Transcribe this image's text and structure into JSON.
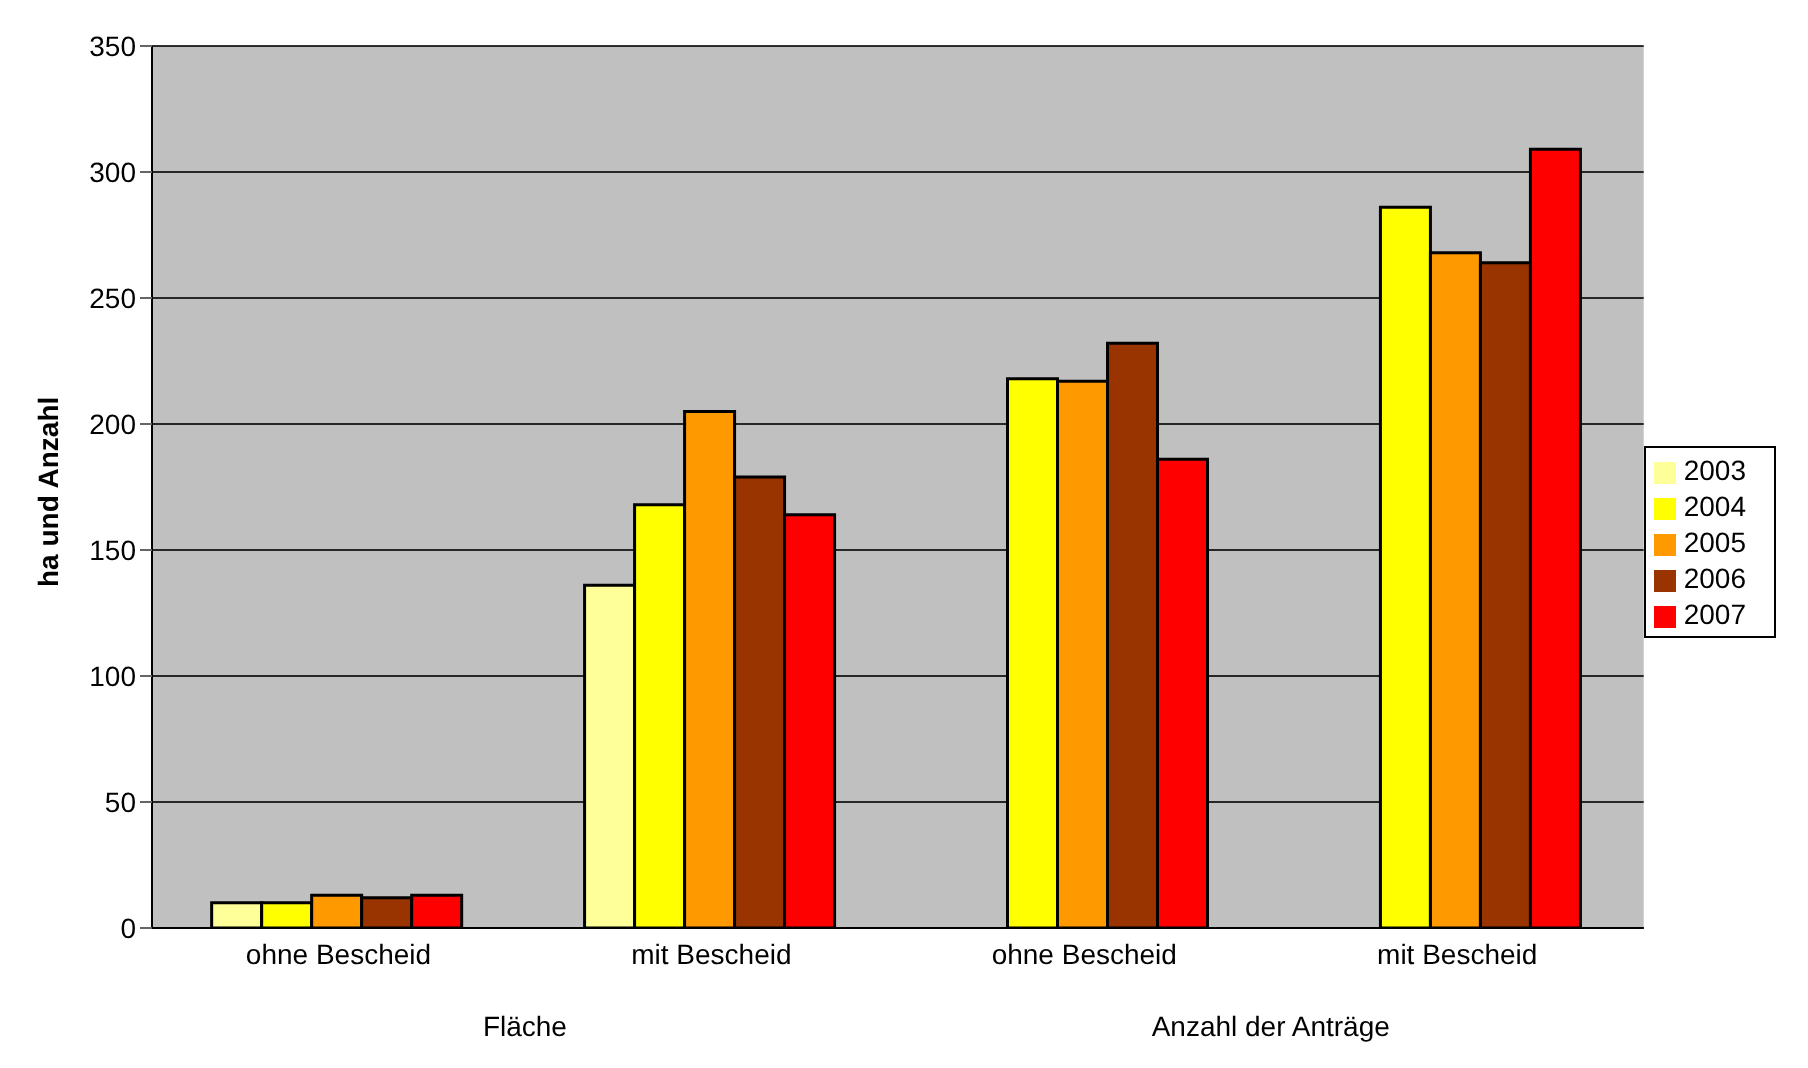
{
  "chart_data": {
    "type": "bar",
    "ylabel": "ha und Anzahl",
    "categories": [
      "ohne Bescheid",
      "mit Bescheid",
      "ohne Bescheid",
      "mit Bescheid"
    ],
    "annotations": [
      "Fläche",
      "Anzahl der Anträge"
    ],
    "series": [
      {
        "name": "2003",
        "color": "#ffff99",
        "values": [
          10,
          136,
          null,
          null
        ]
      },
      {
        "name": "2004",
        "color": "#ffff00",
        "values": [
          10,
          168,
          218,
          286
        ]
      },
      {
        "name": "2005",
        "color": "#ff9900",
        "values": [
          13,
          205,
          217,
          268
        ]
      },
      {
        "name": "2006",
        "color": "#993300",
        "values": [
          12,
          179,
          232,
          264
        ]
      },
      {
        "name": "2007",
        "color": "#ff0000",
        "values": [
          13,
          164,
          186,
          309
        ]
      }
    ],
    "ylim": [
      0,
      350
    ],
    "yticks": [
      0,
      50,
      100,
      150,
      200,
      250,
      300,
      350
    ],
    "grid": "y",
    "legend": "right"
  }
}
